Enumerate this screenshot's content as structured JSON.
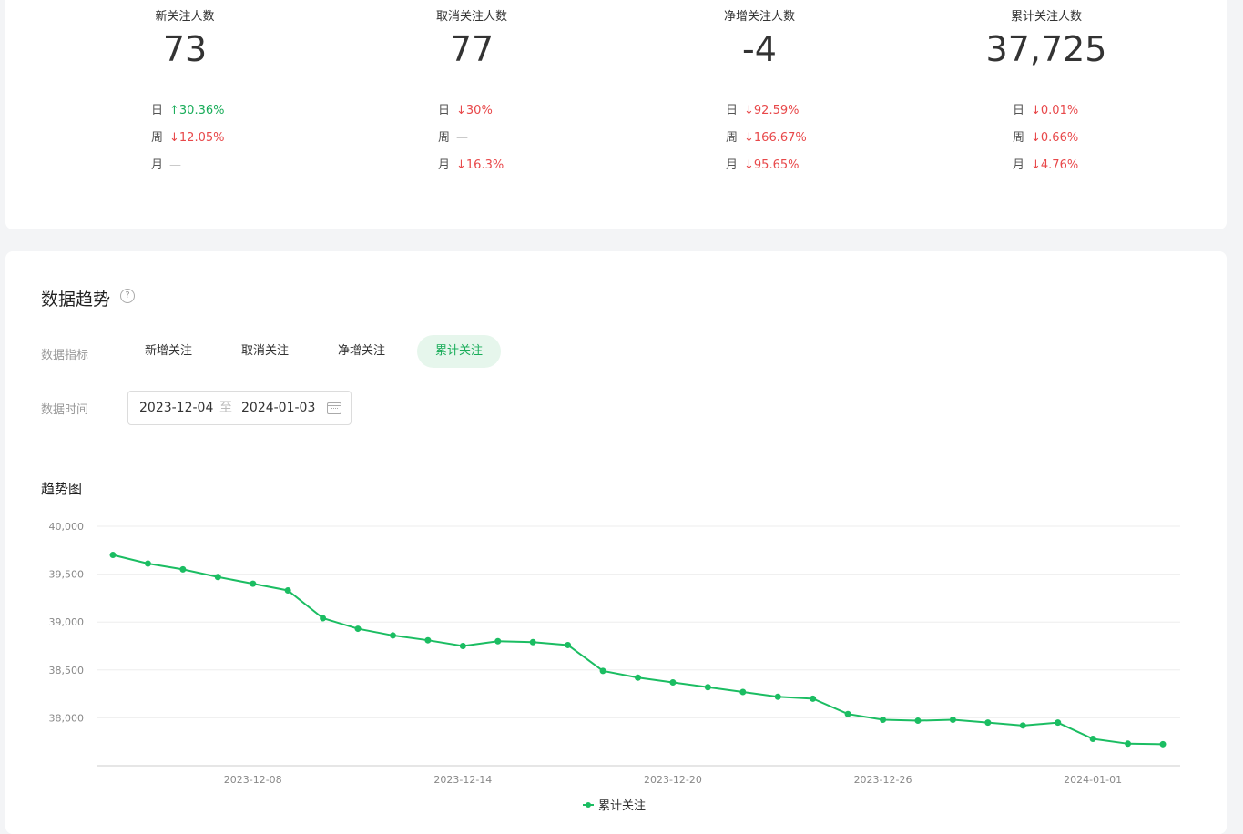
{
  "stats": [
    {
      "title": "新关注人数",
      "value": "73",
      "day": {
        "label": "日",
        "dir": "up",
        "text": "30.36%"
      },
      "week": {
        "label": "周",
        "dir": "down",
        "text": "12.05%"
      },
      "month": {
        "label": "月",
        "dir": "flat",
        "text": "—"
      }
    },
    {
      "title": "取消关注人数",
      "value": "77",
      "day": {
        "label": "日",
        "dir": "down",
        "text": "30%"
      },
      "week": {
        "label": "周",
        "dir": "flat",
        "text": "—"
      },
      "month": {
        "label": "月",
        "dir": "down",
        "text": "16.3%"
      }
    },
    {
      "title": "净增关注人数",
      "value": "-4",
      "day": {
        "label": "日",
        "dir": "down",
        "text": "92.59%"
      },
      "week": {
        "label": "周",
        "dir": "down",
        "text": "166.67%"
      },
      "month": {
        "label": "月",
        "dir": "down",
        "text": "95.65%"
      }
    },
    {
      "title": "累计关注人数",
      "value": "37,725",
      "day": {
        "label": "日",
        "dir": "down",
        "text": "0.01%"
      },
      "week": {
        "label": "周",
        "dir": "down",
        "text": "0.66%"
      },
      "month": {
        "label": "月",
        "dir": "down",
        "text": "4.76%"
      }
    }
  ],
  "trend": {
    "title": "数据趋势",
    "help_icon": "?",
    "metric_label": "数据指标",
    "tabs": [
      "新增关注",
      "取消关注",
      "净增关注",
      "累计关注"
    ],
    "active_tab": "累计关注",
    "time_label": "数据时间",
    "date_start": "2023-12-04",
    "date_sep": "至",
    "date_end": "2024-01-03",
    "chart_title": "趋势图"
  },
  "colors": {
    "accent": "#1aad5a",
    "down": "#e8484a",
    "line": "#1bbd62"
  },
  "chart_data": {
    "type": "line",
    "ylim": [
      37500,
      40000
    ],
    "yticks": [
      40000,
      39500,
      39000,
      38500,
      38000
    ],
    "ytick_labels": [
      "40,000",
      "39,500",
      "39,000",
      "38,500",
      "38,000"
    ],
    "xtick_labels": [
      "2023-12-08",
      "2023-12-14",
      "2023-12-20",
      "2023-12-26",
      "2024-01-01"
    ],
    "x": [
      "2023-12-04",
      "2023-12-05",
      "2023-12-06",
      "2023-12-07",
      "2023-12-08",
      "2023-12-09",
      "2023-12-10",
      "2023-12-11",
      "2023-12-12",
      "2023-12-13",
      "2023-12-14",
      "2023-12-15",
      "2023-12-16",
      "2023-12-17",
      "2023-12-18",
      "2023-12-19",
      "2023-12-20",
      "2023-12-21",
      "2023-12-22",
      "2023-12-23",
      "2023-12-24",
      "2023-12-25",
      "2023-12-26",
      "2023-12-27",
      "2023-12-28",
      "2023-12-29",
      "2023-12-30",
      "2023-12-31",
      "2024-01-01",
      "2024-01-02",
      "2024-01-03"
    ],
    "series": [
      {
        "name": "累计关注",
        "values": [
          39700,
          39610,
          39550,
          39470,
          39400,
          39330,
          39040,
          38930,
          38860,
          38810,
          38750,
          38800,
          38790,
          38760,
          38490,
          38420,
          38370,
          38320,
          38270,
          38220,
          38200,
          38040,
          37980,
          37970,
          37980,
          37950,
          37920,
          37950,
          37780,
          37730,
          37725
        ]
      }
    ],
    "grid": true,
    "legend": "bottom"
  }
}
